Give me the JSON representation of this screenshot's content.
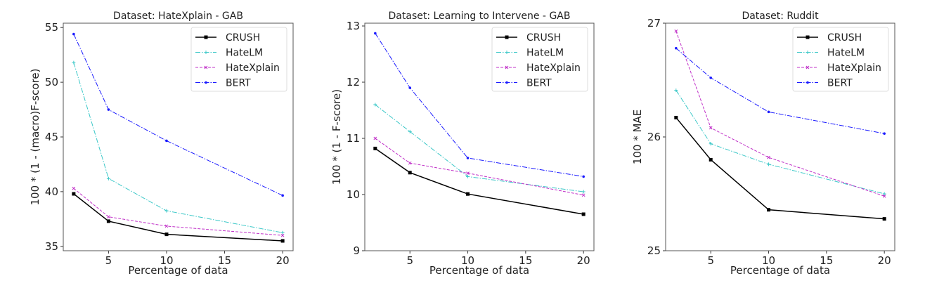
{
  "chart_data": [
    {
      "type": "line",
      "title": "Dataset: HateXplain - GAB",
      "xlabel": "Percentage of data",
      "ylabel": "100 * (1 - (macro)F-score)",
      "x": [
        2,
        5,
        10,
        20
      ],
      "xlim": [
        1.1,
        20.9
      ],
      "ylim": [
        34.6,
        55.4
      ],
      "xticks": [
        5,
        10,
        15,
        20
      ],
      "yticks": [
        35,
        40,
        45,
        50,
        55
      ],
      "grid": false,
      "legend": "top-right",
      "series": [
        {
          "name": "CRUSH",
          "values": [
            39.8,
            37.3,
            36.1,
            35.5
          ]
        },
        {
          "name": "HateLM",
          "values": [
            51.8,
            41.2,
            38.25,
            36.25
          ]
        },
        {
          "name": "HateXplain",
          "values": [
            40.3,
            37.7,
            36.85,
            36.0
          ]
        },
        {
          "name": "BERT",
          "values": [
            54.4,
            47.5,
            44.65,
            39.65
          ]
        }
      ]
    },
    {
      "type": "line",
      "title": "Dataset: Learning to Intervene - GAB",
      "xlabel": "Percentage of data",
      "ylabel": "100 * (1 - F-score)",
      "x": [
        2,
        5,
        10,
        20
      ],
      "xlim": [
        1.1,
        20.9
      ],
      "ylim": [
        9,
        13.05
      ],
      "xticks": [
        5,
        10,
        15,
        20
      ],
      "yticks": [
        9,
        10,
        11,
        12,
        13
      ],
      "grid": false,
      "legend": "top-right",
      "series": [
        {
          "name": "CRUSH",
          "values": [
            10.82,
            10.39,
            10.01,
            9.65
          ]
        },
        {
          "name": "HateLM",
          "values": [
            11.6,
            11.12,
            10.32,
            10.05
          ]
        },
        {
          "name": "HateXplain",
          "values": [
            11.0,
            10.56,
            10.38,
            9.99
          ]
        },
        {
          "name": "BERT",
          "values": [
            12.87,
            11.9,
            10.65,
            10.32
          ]
        }
      ]
    },
    {
      "type": "line",
      "title": "Dataset: Ruddit",
      "xlabel": "Percentage of data",
      "ylabel": "100 * MAE",
      "x": [
        2,
        5,
        10,
        20
      ],
      "xlim": [
        1.1,
        20.9
      ],
      "ylim": [
        25,
        27.0
      ],
      "xticks": [
        5,
        10,
        15,
        20
      ],
      "yticks": [
        25,
        26,
        27
      ],
      "grid": false,
      "legend": "top-right",
      "series": [
        {
          "name": "CRUSH",
          "values": [
            26.17,
            25.8,
            25.36,
            25.28
          ]
        },
        {
          "name": "HateLM",
          "values": [
            26.41,
            25.94,
            25.76,
            25.5
          ]
        },
        {
          "name": "HateXplain",
          "values": [
            26.93,
            26.08,
            25.82,
            25.48
          ]
        },
        {
          "name": "BERT",
          "values": [
            26.78,
            26.52,
            26.22,
            26.03
          ]
        }
      ]
    }
  ],
  "series_style": {
    "CRUSH": {
      "color": "#000000",
      "dash": "",
      "marker": "square"
    },
    "HateLM": {
      "color": "#3cc8c8",
      "dash": "7,2,1.5,2",
      "marker": "plus"
    },
    "HateXplain": {
      "color": "#c030c8",
      "dash": "4,2",
      "marker": "x"
    },
    "BERT": {
      "color": "#1a1aff",
      "dash": "7,2,1.5,2",
      "marker": "dot"
    }
  }
}
